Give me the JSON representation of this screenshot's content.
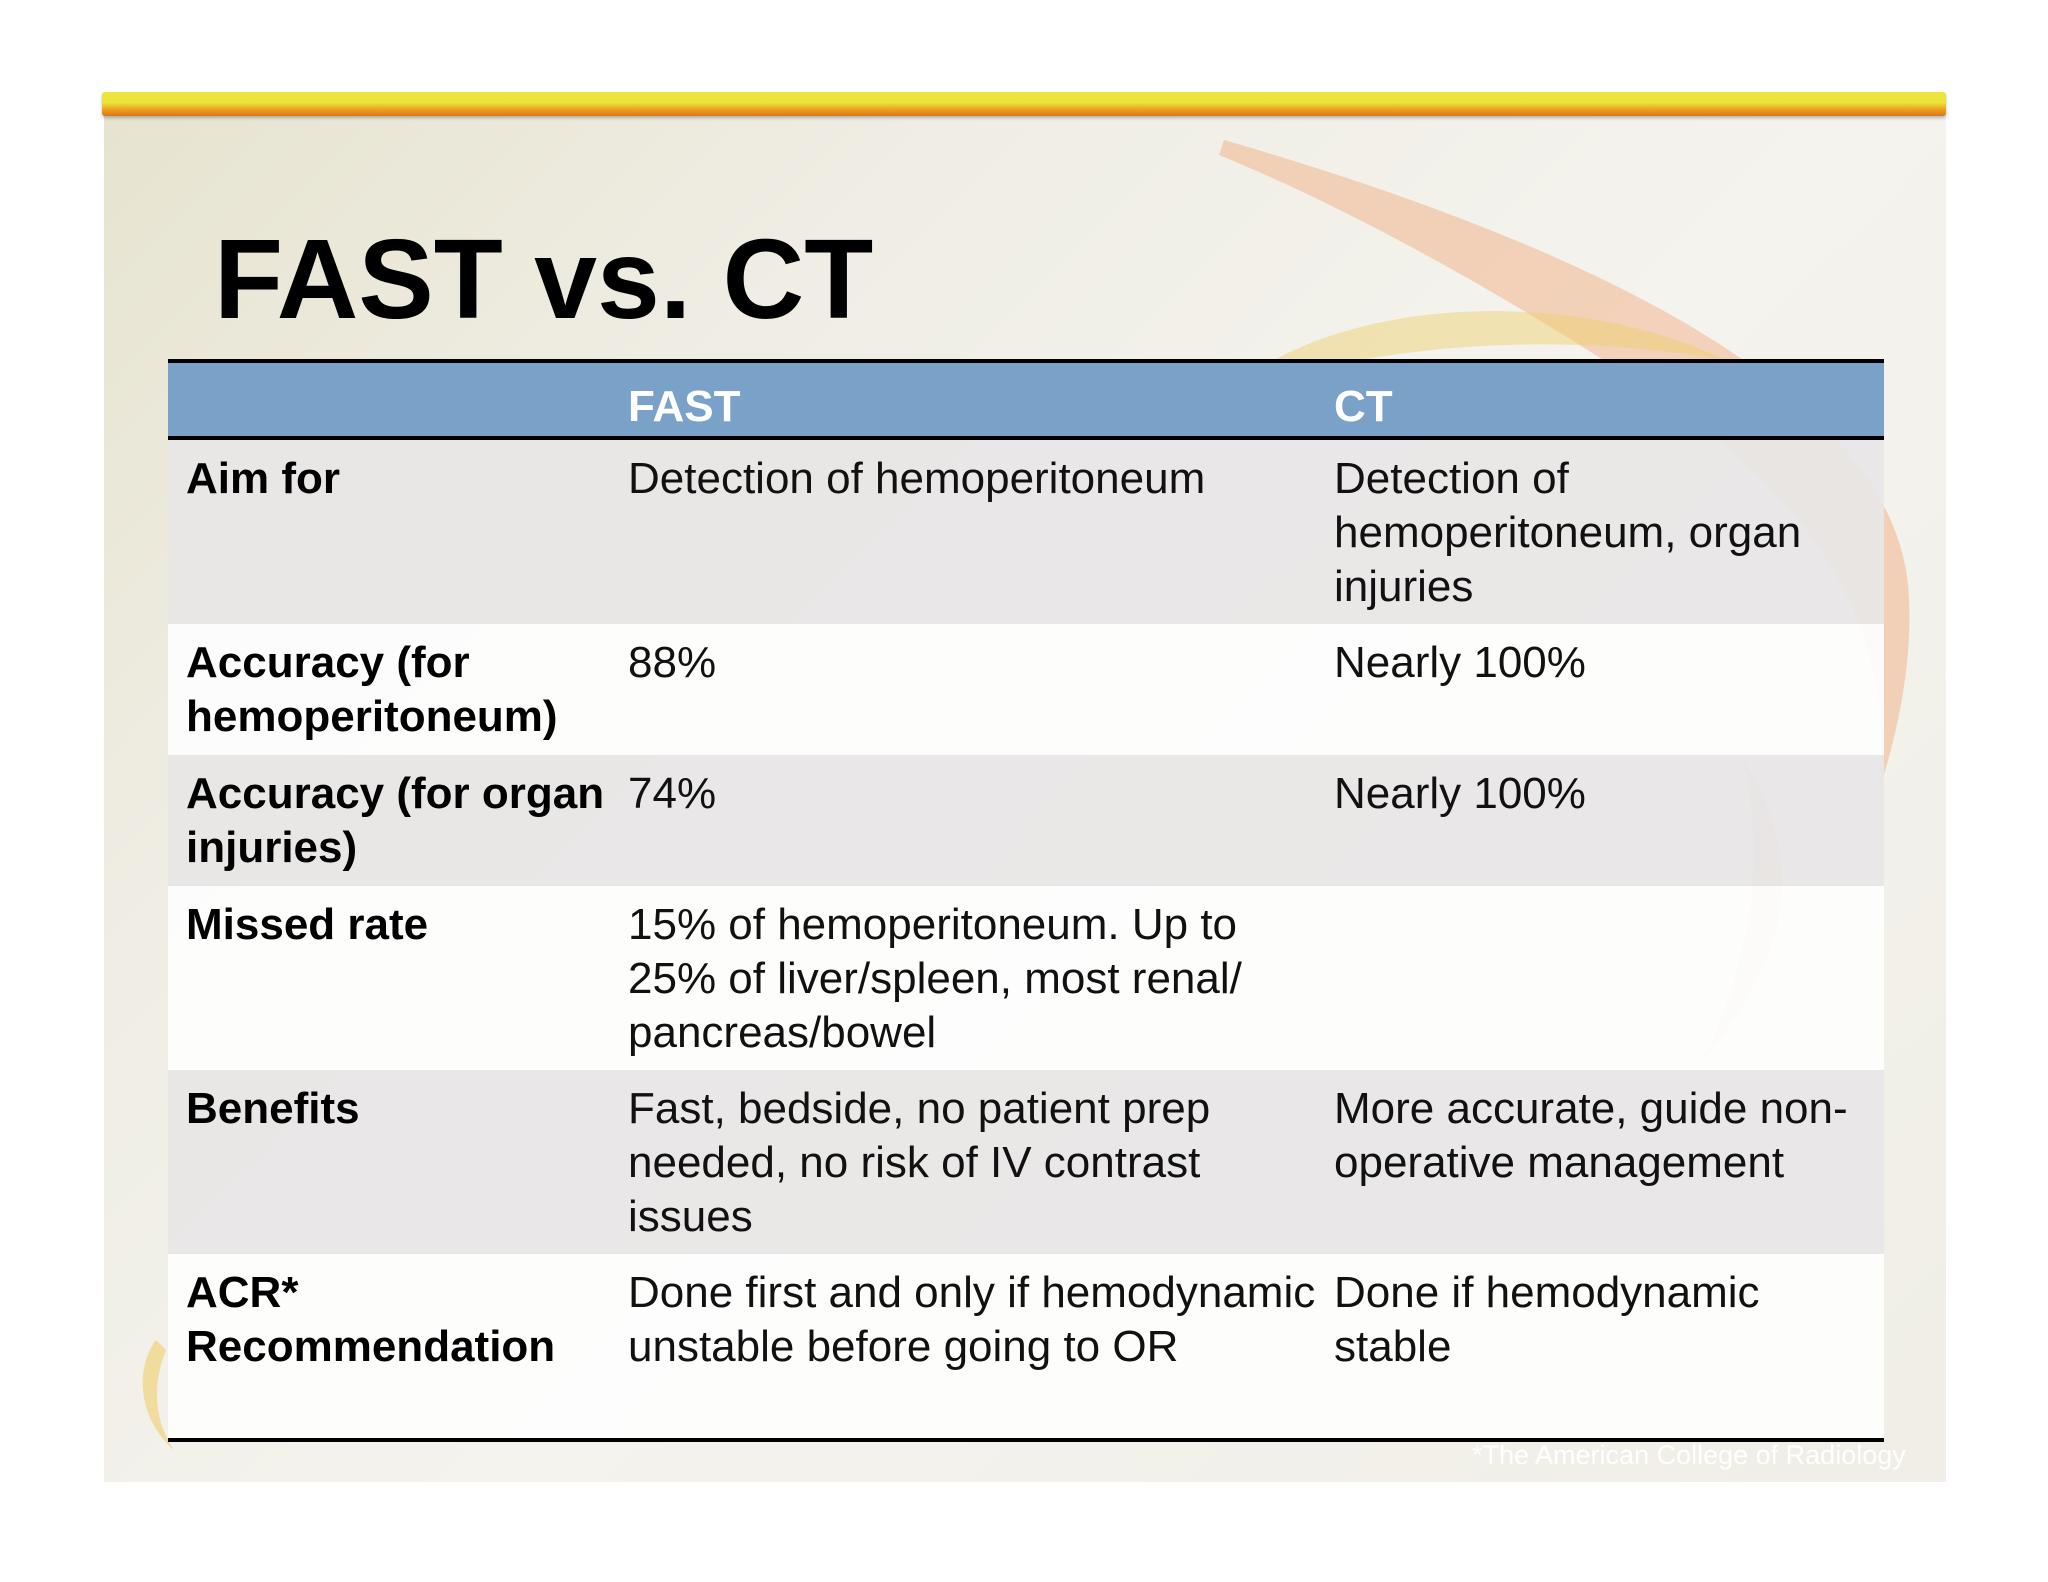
{
  "slide": {
    "title": "FAST vs. CT",
    "footnote": "*The American College of Radiology"
  },
  "table": {
    "headers": [
      "",
      "FAST",
      "CT"
    ],
    "rows": [
      {
        "label": "Aim for",
        "fast": "Detection of hemoperitoneum",
        "ct": "Detection of hemoperitoneum, organ injuries"
      },
      {
        "label": "Accuracy (for hemoperitoneum)",
        "fast": "88%",
        "ct": "Nearly 100%"
      },
      {
        "label": "Accuracy (for organ injuries)",
        "fast": "74%",
        "ct": "Nearly 100%"
      },
      {
        "label": "Missed rate",
        "fast": "15% of hemoperitoneum. Up to 25% of liver/spleen, most renal/ pancreas/bowel",
        "ct": ""
      },
      {
        "label": "Benefits",
        "fast": "Fast, bedside, no patient prep needed, no risk of IV contrast issues",
        "ct": "More accurate, guide non-operative management"
      },
      {
        "label": "ACR* Recommendation",
        "fast": "Done first and only if hemodynamic unstable before going to OR",
        "ct": "Done if hemodynamic stable"
      }
    ]
  },
  "colors": {
    "header_fill": "#7aa2c8",
    "accent_bar_yellow": "#ece53a",
    "accent_bar_orange": "#d9761a",
    "swoosh_orange": "#f2a97a",
    "swoosh_yellow": "#efcf6a"
  }
}
